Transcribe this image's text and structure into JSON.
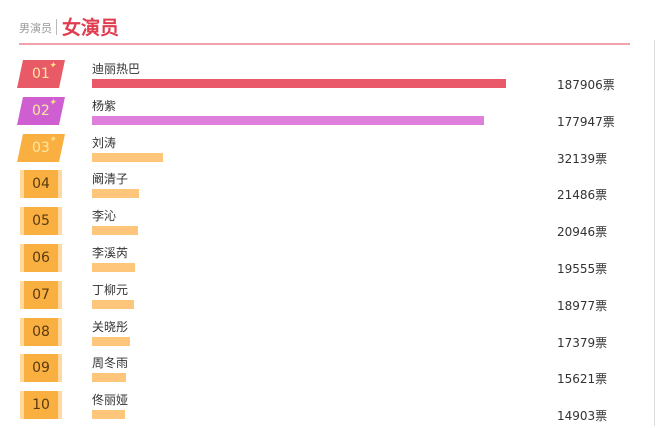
{
  "header": {
    "other_tab": "男演员",
    "active_tab": "女演员"
  },
  "vote_unit": "票",
  "colors": {
    "first": "#e85a66",
    "second": "#cf5fd0",
    "rest": "#f9b040",
    "bar_first": "#e9596a",
    "bar_second": "#dd7fdb",
    "bar_rest": "#fdc67a",
    "accent": "#e03c50"
  },
  "rankings": [
    {
      "rank": "01",
      "name": "迪丽热巴",
      "votes": 187906,
      "votes_label": "187906票"
    },
    {
      "rank": "02",
      "name": "杨紫",
      "votes": 177947,
      "votes_label": "177947票"
    },
    {
      "rank": "03",
      "name": "刘涛",
      "votes": 32139,
      "votes_label": "32139票"
    },
    {
      "rank": "04",
      "name": "阚清子",
      "votes": 21486,
      "votes_label": "21486票"
    },
    {
      "rank": "05",
      "name": "李沁",
      "votes": 20946,
      "votes_label": "20946票"
    },
    {
      "rank": "06",
      "name": "李溪芮",
      "votes": 19555,
      "votes_label": "19555票"
    },
    {
      "rank": "07",
      "name": "丁柳元",
      "votes": 18977,
      "votes_label": "18977票"
    },
    {
      "rank": "08",
      "name": "关晓彤",
      "votes": 17379,
      "votes_label": "17379票"
    },
    {
      "rank": "09",
      "name": "周冬雨",
      "votes": 15621,
      "votes_label": "15621票"
    },
    {
      "rank": "10",
      "name": "佟丽娅",
      "votes": 14903,
      "votes_label": "14903票"
    }
  ]
}
